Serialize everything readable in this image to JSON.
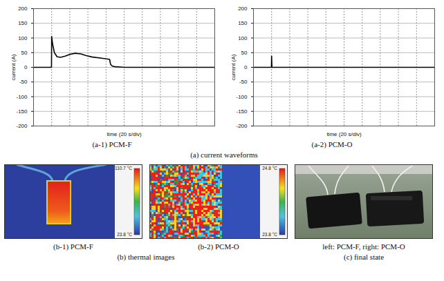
{
  "chart_data": [
    {
      "type": "line",
      "title": "(a-1) PCM-F",
      "x_label": "time (20 s/div)",
      "y_label": "current (A)",
      "x": [
        0,
        19.8,
        20,
        21,
        23,
        26,
        30,
        35,
        40,
        46,
        52,
        58,
        65,
        75,
        84,
        85,
        87,
        90,
        100,
        200
      ],
      "values": [
        0,
        0,
        105,
        80,
        50,
        36,
        34,
        38,
        44,
        48,
        46,
        40,
        35,
        31,
        27,
        10,
        4,
        2,
        0,
        0
      ],
      "color": "#000000",
      "xlim": [
        0,
        200
      ],
      "xticks": [
        0,
        20,
        40,
        60,
        80,
        100,
        120,
        140,
        160,
        180,
        200
      ],
      "ylim": [
        -200,
        200
      ],
      "yticks": [
        -200,
        -150,
        -100,
        -50,
        0,
        50,
        100,
        150,
        200
      ],
      "grid": true,
      "tick_labels": "y"
    },
    {
      "type": "line",
      "title": "(a-2) PCM-O",
      "x_label": "time (20 s/div)",
      "y_label": "current (A)",
      "x": [
        0,
        19.8,
        20,
        20.4,
        200
      ],
      "values": [
        0,
        0,
        38,
        0,
        0
      ],
      "color": "#000000",
      "xlim": [
        0,
        200
      ],
      "xticks": [
        0,
        20,
        40,
        60,
        80,
        100,
        120,
        140,
        160,
        180,
        200
      ],
      "ylim": [
        -200,
        200
      ],
      "yticks": [
        -200,
        -150,
        -100,
        -50,
        0,
        50,
        100,
        150,
        200
      ],
      "grid": true,
      "tick_labels": "y"
    }
  ],
  "caption_a": "(a) current waveforms",
  "thermal_images": {
    "caption": "(b) thermal images",
    "panels": [
      {
        "title": "(b-1) PCM-F",
        "colorbar": {
          "range": [
            23.8,
            110.7
          ],
          "ticks": [
            {
              "value": 110.7,
              "label": "110.7 °C"
            },
            {
              "value": 23.8,
              "label": "23.8 °C"
            }
          ]
        }
      },
      {
        "title": "(b-2) PCM-O",
        "colorbar": {
          "range": [
            23.8,
            24.8
          ],
          "ticks": [
            {
              "value": 24.8,
              "label": "24.8 °C"
            },
            {
              "value": 23.8,
              "label": "23.8 °C"
            }
          ]
        }
      }
    ]
  },
  "photo": {
    "title": "left: PCM-F, right: PCM-O",
    "caption": "(c) final state"
  }
}
